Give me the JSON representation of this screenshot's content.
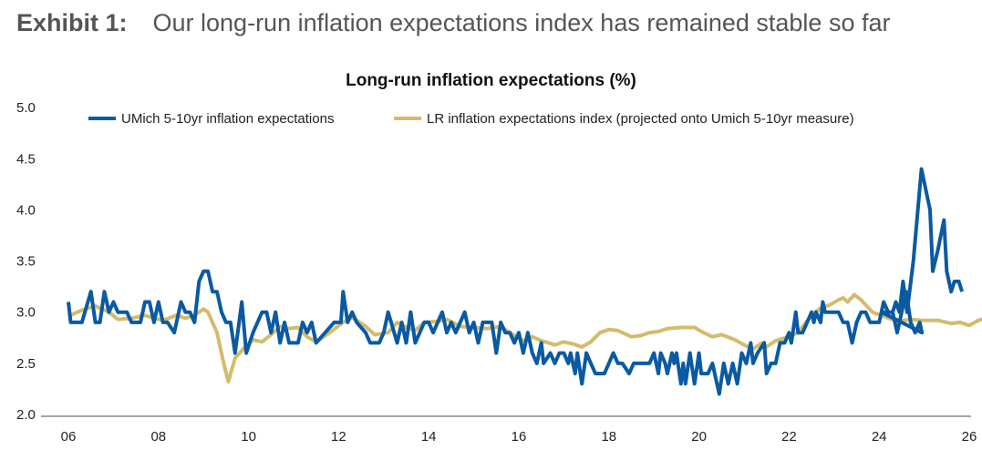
{
  "header": {
    "label": "Exhibit 1:",
    "subtitle": "Our long-run inflation expectations index has remained stable so far"
  },
  "chart_data": {
    "type": "line",
    "title": "Long-run inflation expectations (%)",
    "xlabel": "",
    "ylabel": "",
    "xlim": [
      2006,
      2026.3
    ],
    "ylim": [
      2.0,
      5.0
    ],
    "x_ticks": [
      "06",
      "08",
      "10",
      "12",
      "14",
      "16",
      "18",
      "20",
      "22",
      "24",
      "26"
    ],
    "y_ticks": [
      "2.0",
      "2.5",
      "3.0",
      "3.5",
      "4.0",
      "4.5",
      "5.0"
    ],
    "legend_position": "top",
    "grid": false,
    "series": [
      {
        "name": "UMich 5-10yr inflation expectations",
        "color": "#0a5aa3",
        "points": [
          [
            2006.0,
            3.1
          ],
          [
            2006.05,
            2.9
          ],
          [
            2006.3,
            2.9
          ],
          [
            2006.5,
            3.2
          ],
          [
            2006.6,
            2.9
          ],
          [
            2006.7,
            2.9
          ],
          [
            2006.8,
            3.2
          ],
          [
            2006.9,
            3.0
          ],
          [
            2007.0,
            3.1
          ],
          [
            2007.1,
            3.0
          ],
          [
            2007.3,
            3.0
          ],
          [
            2007.4,
            2.9
          ],
          [
            2007.6,
            2.9
          ],
          [
            2007.7,
            3.1
          ],
          [
            2007.8,
            3.1
          ],
          [
            2007.9,
            2.9
          ],
          [
            2008.0,
            3.1
          ],
          [
            2008.1,
            2.9
          ],
          [
            2008.2,
            2.9
          ],
          [
            2008.35,
            2.8
          ],
          [
            2008.5,
            3.1
          ],
          [
            2008.6,
            3.0
          ],
          [
            2008.7,
            3.0
          ],
          [
            2008.8,
            2.9
          ],
          [
            2008.9,
            3.3
          ],
          [
            2009.0,
            3.4
          ],
          [
            2009.1,
            3.4
          ],
          [
            2009.2,
            3.2
          ],
          [
            2009.3,
            3.2
          ],
          [
            2009.4,
            3.0
          ],
          [
            2009.5,
            2.9
          ],
          [
            2009.6,
            2.9
          ],
          [
            2009.7,
            2.6
          ],
          [
            2009.85,
            3.1
          ],
          [
            2009.95,
            2.6
          ],
          [
            2010.1,
            2.8
          ],
          [
            2010.3,
            3.0
          ],
          [
            2010.4,
            3.0
          ],
          [
            2010.5,
            2.8
          ],
          [
            2010.6,
            3.0
          ],
          [
            2010.7,
            2.7
          ],
          [
            2010.8,
            2.9
          ],
          [
            2010.9,
            2.7
          ],
          [
            2011.1,
            2.7
          ],
          [
            2011.2,
            2.9
          ],
          [
            2011.3,
            2.8
          ],
          [
            2011.4,
            2.9
          ],
          [
            2011.5,
            2.7
          ],
          [
            2011.7,
            2.8
          ],
          [
            2011.9,
            2.9
          ],
          [
            2012.05,
            2.9
          ],
          [
            2012.1,
            3.2
          ],
          [
            2012.2,
            2.9
          ],
          [
            2012.3,
            3.0
          ],
          [
            2012.4,
            2.9
          ],
          [
            2012.6,
            2.8
          ],
          [
            2012.7,
            2.7
          ],
          [
            2012.9,
            2.7
          ],
          [
            2013.0,
            2.8
          ],
          [
            2013.1,
            3.0
          ],
          [
            2013.3,
            2.7
          ],
          [
            2013.4,
            2.9
          ],
          [
            2013.5,
            2.7
          ],
          [
            2013.6,
            3.0
          ],
          [
            2013.7,
            2.7
          ],
          [
            2013.9,
            2.9
          ],
          [
            2014.0,
            2.9
          ],
          [
            2014.1,
            2.8
          ],
          [
            2014.3,
            3.0
          ],
          [
            2014.4,
            2.8
          ],
          [
            2014.5,
            2.9
          ],
          [
            2014.6,
            2.8
          ],
          [
            2014.8,
            3.0
          ],
          [
            2014.9,
            2.8
          ],
          [
            2015.0,
            2.9
          ],
          [
            2015.1,
            2.7
          ],
          [
            2015.2,
            2.9
          ],
          [
            2015.4,
            2.9
          ],
          [
            2015.5,
            2.6
          ],
          [
            2015.6,
            2.9
          ],
          [
            2015.7,
            2.8
          ],
          [
            2015.8,
            2.8
          ],
          [
            2015.9,
            2.7
          ],
          [
            2016.0,
            2.8
          ],
          [
            2016.1,
            2.6
          ],
          [
            2016.2,
            2.8
          ],
          [
            2016.3,
            2.6
          ],
          [
            2016.4,
            2.5
          ],
          [
            2016.5,
            2.7
          ],
          [
            2016.55,
            2.5
          ],
          [
            2016.7,
            2.6
          ],
          [
            2016.8,
            2.5
          ],
          [
            2016.9,
            2.6
          ],
          [
            2017.0,
            2.6
          ],
          [
            2017.1,
            2.5
          ],
          [
            2017.15,
            2.6
          ],
          [
            2017.25,
            2.4
          ],
          [
            2017.3,
            2.6
          ],
          [
            2017.4,
            2.3
          ],
          [
            2017.5,
            2.6
          ],
          [
            2017.6,
            2.5
          ],
          [
            2017.7,
            2.4
          ],
          [
            2017.9,
            2.4
          ],
          [
            2018.1,
            2.6
          ],
          [
            2018.2,
            2.5
          ],
          [
            2018.3,
            2.5
          ],
          [
            2018.45,
            2.4
          ],
          [
            2018.55,
            2.5
          ],
          [
            2018.9,
            2.5
          ],
          [
            2019.0,
            2.6
          ],
          [
            2019.1,
            2.4
          ],
          [
            2019.15,
            2.6
          ],
          [
            2019.25,
            2.5
          ],
          [
            2019.3,
            2.4
          ],
          [
            2019.4,
            2.6
          ],
          [
            2019.45,
            2.5
          ],
          [
            2019.5,
            2.6
          ],
          [
            2019.6,
            2.3
          ],
          [
            2019.65,
            2.5
          ],
          [
            2019.7,
            2.3
          ],
          [
            2019.8,
            2.6
          ],
          [
            2019.9,
            2.3
          ],
          [
            2020.0,
            2.6
          ],
          [
            2020.05,
            2.4
          ],
          [
            2020.2,
            2.4
          ],
          [
            2020.3,
            2.5
          ],
          [
            2020.45,
            2.2
          ],
          [
            2020.55,
            2.5
          ],
          [
            2020.65,
            2.3
          ],
          [
            2020.75,
            2.5
          ],
          [
            2020.85,
            2.3
          ],
          [
            2020.95,
            2.6
          ],
          [
            2021.05,
            2.5
          ],
          [
            2021.15,
            2.7
          ],
          [
            2021.2,
            2.5
          ],
          [
            2021.3,
            2.6
          ],
          [
            2021.45,
            2.7
          ],
          [
            2021.5,
            2.4
          ],
          [
            2021.6,
            2.5
          ],
          [
            2021.7,
            2.5
          ],
          [
            2021.8,
            2.7
          ],
          [
            2021.9,
            2.7
          ],
          [
            2022.0,
            2.8
          ],
          [
            2022.05,
            2.7
          ],
          [
            2022.15,
            3.0
          ],
          [
            2022.2,
            2.8
          ],
          [
            2022.3,
            2.8
          ],
          [
            2022.4,
            2.9
          ],
          [
            2022.5,
            3.0
          ],
          [
            2022.55,
            2.9
          ],
          [
            2022.6,
            3.0
          ],
          [
            2022.7,
            2.9
          ],
          [
            2022.75,
            3.1
          ],
          [
            2022.8,
            3.0
          ],
          [
            2023.0,
            3.0
          ],
          [
            2023.1,
            3.0
          ],
          [
            2023.2,
            2.9
          ],
          [
            2023.3,
            2.9
          ],
          [
            2023.4,
            2.7
          ],
          [
            2023.5,
            2.9
          ],
          [
            2023.6,
            3.0
          ],
          [
            2023.7,
            3.0
          ],
          [
            2023.8,
            2.9
          ],
          [
            2024.0,
            2.9
          ],
          [
            2024.1,
            3.1
          ],
          [
            2024.2,
            3.0
          ],
          [
            2024.3,
            3.0
          ],
          [
            2024.4,
            2.8
          ],
          [
            2024.5,
            3.0
          ],
          [
            2024.6,
            3.2
          ],
          [
            2024.7,
            2.9
          ],
          [
            2024.8,
            2.8
          ],
          [
            2024.9,
            2.9
          ],
          [
            2024.95,
            2.8
          ],
          [
            2025.05,
            3.0
          ],
          [
            2025.3,
            3.0
          ],
          [
            2025.37,
            3.1
          ],
          [
            2025.45,
            3.0
          ],
          [
            2025.53,
            3.3
          ],
          [
            2025.62,
            3.0
          ],
          [
            2025.76,
            3.5
          ],
          [
            2025.94,
            4.4
          ],
          [
            2026.13,
            4.0
          ],
          [
            2026.19,
            3.4
          ],
          [
            2026.3,
            3.6
          ],
          [
            2026.44,
            3.9
          ],
          [
            2026.5,
            3.4
          ],
          [
            2026.6,
            3.2
          ],
          [
            2026.67,
            3.3
          ],
          [
            2026.77,
            3.3
          ],
          [
            2026.84,
            3.2
          ]
        ]
      },
      {
        "name": "LR inflation expectations index (projected onto Umich 5-10yr measure)",
        "color": "#d4bb6c",
        "points": [
          [
            2006.0,
            2.96
          ],
          [
            2006.3,
            3.02
          ],
          [
            2006.6,
            3.06
          ],
          [
            2006.9,
            3.0
          ],
          [
            2007.1,
            2.93
          ],
          [
            2007.4,
            2.94
          ],
          [
            2007.7,
            2.97
          ],
          [
            2007.9,
            2.94
          ],
          [
            2008.1,
            2.92
          ],
          [
            2008.4,
            2.97
          ],
          [
            2008.6,
            2.94
          ],
          [
            2008.8,
            2.97
          ],
          [
            2009.0,
            3.03
          ],
          [
            2009.1,
            3.0
          ],
          [
            2009.3,
            2.8
          ],
          [
            2009.45,
            2.5
          ],
          [
            2009.55,
            2.32
          ],
          [
            2009.7,
            2.55
          ],
          [
            2009.9,
            2.65
          ],
          [
            2010.1,
            2.73
          ],
          [
            2010.3,
            2.71
          ],
          [
            2010.5,
            2.78
          ],
          [
            2010.7,
            2.86
          ],
          [
            2010.9,
            2.84
          ],
          [
            2011.1,
            2.85
          ],
          [
            2011.3,
            2.76
          ],
          [
            2011.5,
            2.71
          ],
          [
            2011.8,
            2.8
          ],
          [
            2012.1,
            2.9
          ],
          [
            2012.3,
            2.95
          ],
          [
            2012.6,
            2.86
          ],
          [
            2012.8,
            2.78
          ],
          [
            2013.1,
            2.8
          ],
          [
            2013.3,
            2.9
          ],
          [
            2013.5,
            2.85
          ],
          [
            2013.7,
            2.82
          ],
          [
            2013.9,
            2.9
          ],
          [
            2014.2,
            2.91
          ],
          [
            2014.4,
            2.93
          ],
          [
            2014.7,
            2.86
          ],
          [
            2015.0,
            2.85
          ],
          [
            2015.3,
            2.84
          ],
          [
            2015.6,
            2.86
          ],
          [
            2015.9,
            2.77
          ],
          [
            2016.1,
            2.72
          ],
          [
            2016.3,
            2.76
          ],
          [
            2016.5,
            2.72
          ],
          [
            2016.8,
            2.68
          ],
          [
            2017.0,
            2.71
          ],
          [
            2017.2,
            2.69
          ],
          [
            2017.4,
            2.66
          ],
          [
            2017.6,
            2.71
          ],
          [
            2017.8,
            2.8
          ],
          [
            2018.0,
            2.83
          ],
          [
            2018.2,
            2.82
          ],
          [
            2018.5,
            2.76
          ],
          [
            2018.7,
            2.77
          ],
          [
            2018.9,
            2.8
          ],
          [
            2019.1,
            2.81
          ],
          [
            2019.3,
            2.84
          ],
          [
            2019.6,
            2.85
          ],
          [
            2019.9,
            2.85
          ],
          [
            2020.1,
            2.8
          ],
          [
            2020.3,
            2.76
          ],
          [
            2020.5,
            2.78
          ],
          [
            2020.8,
            2.73
          ],
          [
            2021.0,
            2.68
          ],
          [
            2021.2,
            2.64
          ],
          [
            2021.4,
            2.7
          ],
          [
            2021.5,
            2.66
          ],
          [
            2021.7,
            2.72
          ],
          [
            2022.0,
            2.76
          ],
          [
            2022.2,
            2.8
          ],
          [
            2022.5,
            2.97
          ],
          [
            2022.7,
            3.04
          ],
          [
            2022.9,
            3.07
          ],
          [
            2023.1,
            3.12
          ],
          [
            2023.2,
            3.14
          ],
          [
            2023.3,
            3.1
          ],
          [
            2023.45,
            3.17
          ],
          [
            2023.6,
            3.12
          ],
          [
            2023.85,
            3.0
          ],
          [
            2024.1,
            2.96
          ],
          [
            2024.4,
            2.91
          ],
          [
            2024.7,
            2.93
          ],
          [
            2024.95,
            2.92
          ],
          [
            2025.3,
            2.92
          ],
          [
            2025.6,
            2.89
          ],
          [
            2025.8,
            2.9
          ],
          [
            2026.0,
            2.87
          ],
          [
            2026.2,
            2.92
          ],
          [
            2026.45,
            2.95
          ],
          [
            2026.6,
            2.93
          ],
          [
            2026.75,
            2.92
          ],
          [
            2026.85,
            2.94
          ]
        ]
      }
    ]
  }
}
